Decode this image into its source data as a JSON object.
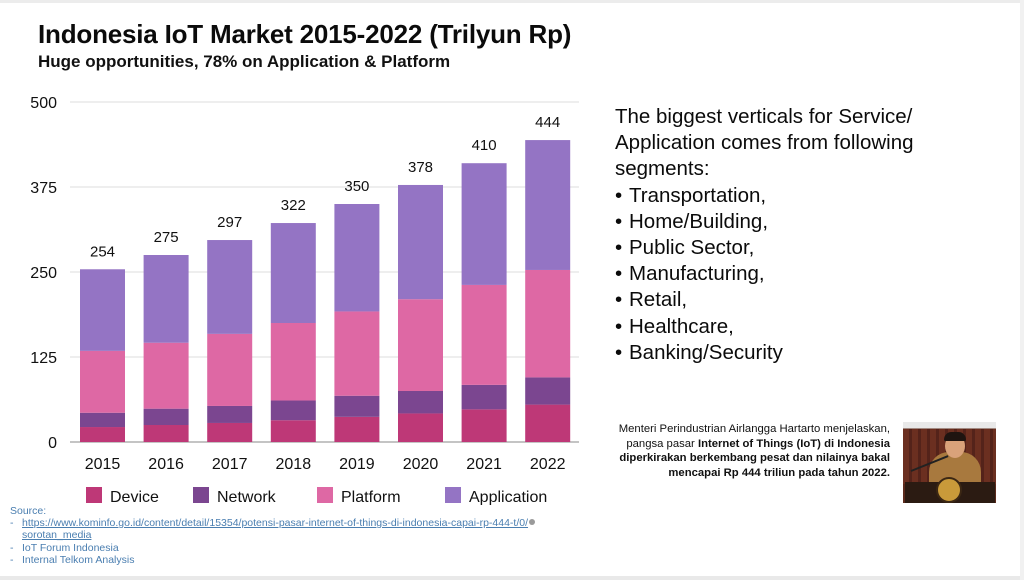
{
  "slide": {
    "title": "Indonesia IoT Market 2015-2022 (Trilyun Rp)",
    "subtitle": "Huge opportunities, 78% on Application & Platform"
  },
  "chart_data": {
    "type": "bar",
    "stacked": true,
    "title": "Indonesia IoT Market 2015-2022 (Trilyun Rp)",
    "subtitle": "Huge opportunities, 78% on Application & Platform",
    "xlabel": "",
    "ylabel": "",
    "categories": [
      "2015",
      "2016",
      "2017",
      "2018",
      "2019",
      "2020",
      "2021",
      "2022"
    ],
    "series": [
      {
        "name": "Device",
        "color": "#be3877",
        "values": [
          22,
          25,
          28,
          32,
          37,
          42,
          48,
          55
        ]
      },
      {
        "name": "Network",
        "color": "#7b4690",
        "values": [
          21,
          24,
          25,
          29,
          31,
          33,
          36,
          40
        ]
      },
      {
        "name": "Platform",
        "color": "#de68a4",
        "values": [
          91,
          97,
          106,
          114,
          124,
          135,
          147,
          158
        ]
      },
      {
        "name": "Application",
        "color": "#9474c4",
        "values": [
          120,
          129,
          138,
          147,
          158,
          168,
          179,
          191
        ]
      }
    ],
    "totals": [
      254,
      275,
      297,
      322,
      350,
      378,
      410,
      444
    ],
    "total_labels": [
      "254",
      "275",
      "297",
      "322",
      "350",
      "378",
      "410",
      "444"
    ],
    "ylim": [
      0,
      500
    ],
    "yticks": [
      0,
      125,
      250,
      375,
      500
    ],
    "ytick_labels": [
      "0",
      "125",
      "250",
      "375",
      "500"
    ],
    "grid": true,
    "legend_position": "bottom"
  },
  "verticals": {
    "intro": "The biggest verticals for Service/ Application comes from following segments:",
    "intro_lines": [
      "The biggest verticals for Service/",
      "Application comes from following",
      "segments:"
    ],
    "bullet": "•",
    "items": [
      "Transportation,",
      "Home/Building,",
      "Public Sector,",
      "Manufacturing,",
      "Retail,",
      "Healthcare,",
      "Banking/Security"
    ]
  },
  "quote": {
    "plain": "Menteri Perindustrian Airlangga Hartarto menjelaskan, pangsa pasar ",
    "bold": "Internet of Things (IoT) di Indonesia diperkirakan berkembang pesat dan nilainya bakal mencapai Rp 444 triliun pada tahun 2022."
  },
  "photo": {
    "description": "minister-speaking-at-podium"
  },
  "source": {
    "label": "Source:",
    "dash": "-",
    "link_text": "https://www.kominfo.go.id/content/detail/15354/potensi-pasar-internet-of-things-di-indonesia-capai-rp-444-t/0/",
    "link_continuation": "sorotan_media",
    "items": [
      "IoT Forum Indonesia",
      "Internal Telkom Analysis"
    ]
  }
}
